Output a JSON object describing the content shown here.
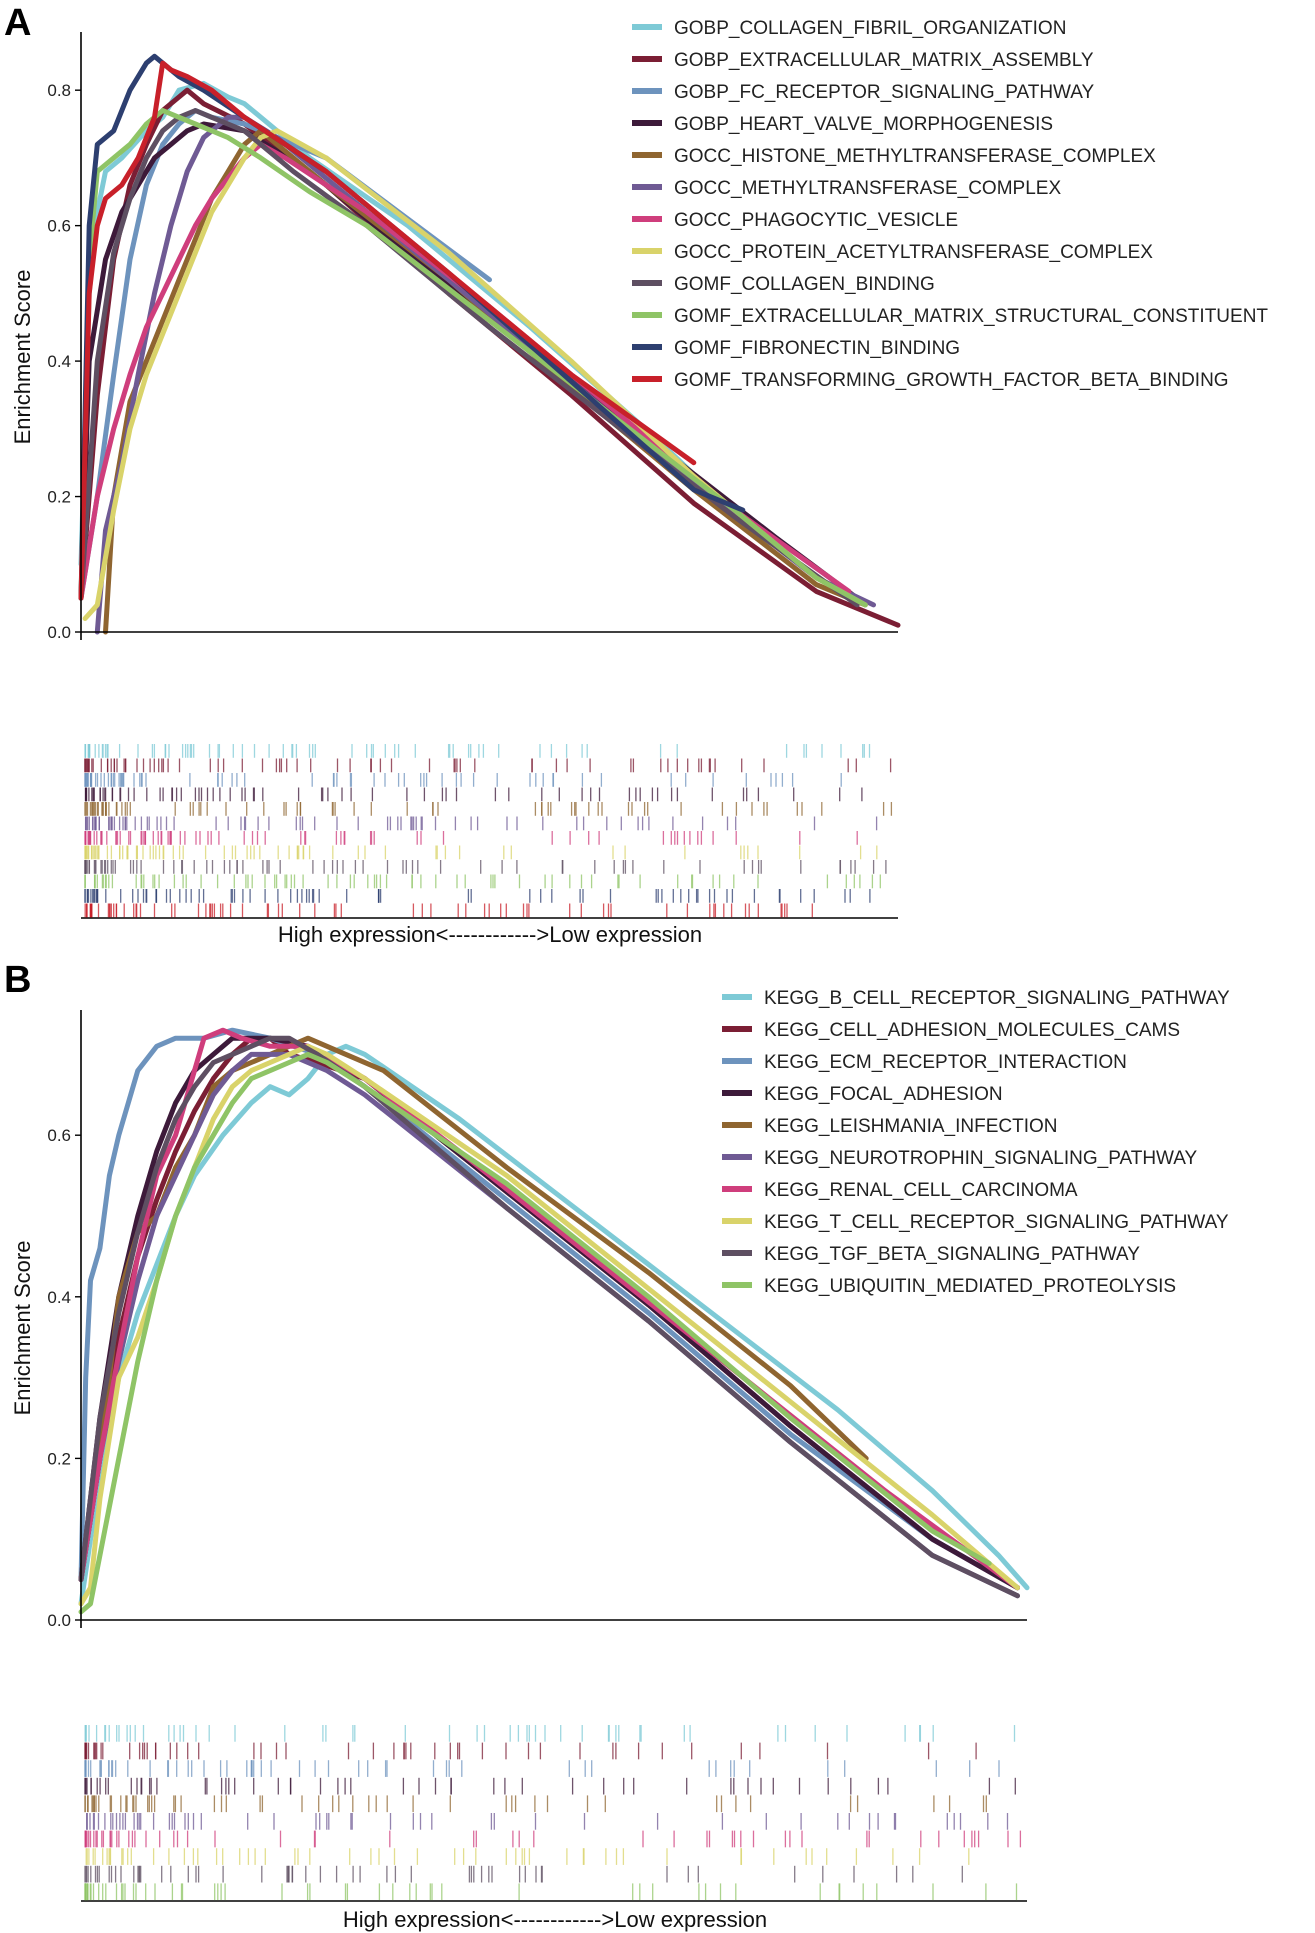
{
  "chart_data": [
    {
      "panel": "A",
      "type": "line",
      "title": "",
      "ylabel": "Enrichment Score",
      "xlabel": "High expression<------------>Low expression",
      "ylim": [
        0,
        0.88
      ],
      "yticks": [
        0.0,
        0.2,
        0.4,
        0.6,
        0.8
      ],
      "ytick_labels": [
        "0.0",
        "0.2",
        "0.4",
        "0.6",
        "0.8"
      ],
      "xlim": [
        0,
        1
      ],
      "grid": false,
      "legend_position": "top-right",
      "series": [
        {
          "name": "GOBP_COLLAGEN_FIBRIL_ORGANIZATION",
          "color": "#7ecad6",
          "x": [
            0,
            0.01,
            0.02,
            0.03,
            0.05,
            0.08,
            0.1,
            0.12,
            0.15,
            0.18,
            0.2,
            0.28,
            0.4,
            0.55,
            0.7,
            0.84
          ],
          "y": [
            0.1,
            0.5,
            0.62,
            0.68,
            0.7,
            0.74,
            0.76,
            0.8,
            0.81,
            0.79,
            0.78,
            0.7,
            0.6,
            0.45,
            0.29,
            0.13
          ]
        },
        {
          "name": "GOBP_EXTRACELLULAR_MATRIX_ASSEMBLY",
          "color": "#7b1e34",
          "x": [
            0,
            0.02,
            0.04,
            0.06,
            0.08,
            0.1,
            0.12,
            0.13,
            0.15,
            0.2,
            0.3,
            0.45,
            0.6,
            0.75,
            0.9,
            1.0
          ],
          "y": [
            0.05,
            0.35,
            0.55,
            0.66,
            0.72,
            0.77,
            0.79,
            0.8,
            0.78,
            0.75,
            0.66,
            0.5,
            0.35,
            0.19,
            0.06,
            0.01
          ]
        },
        {
          "name": "GOBP_FC_RECEPTOR_SIGNALING_PATHWAY",
          "color": "#6d93bd",
          "x": [
            0,
            0.02,
            0.04,
            0.06,
            0.08,
            0.1,
            0.12,
            0.14,
            0.16,
            0.2,
            0.3,
            0.4,
            0.5
          ],
          "y": [
            0.05,
            0.2,
            0.38,
            0.55,
            0.66,
            0.72,
            0.75,
            0.77,
            0.76,
            0.75,
            0.7,
            0.61,
            0.52
          ]
        },
        {
          "name": "GOBP_HEART_VALVE_MORPHOGENESIS",
          "color": "#3d1a3a",
          "x": [
            0,
            0.01,
            0.03,
            0.05,
            0.07,
            0.09,
            0.11,
            0.13,
            0.15,
            0.2,
            0.28,
            0.4,
            0.55,
            0.7,
            0.85,
            0.95
          ],
          "y": [
            0.05,
            0.4,
            0.55,
            0.62,
            0.66,
            0.7,
            0.72,
            0.74,
            0.75,
            0.74,
            0.68,
            0.56,
            0.42,
            0.28,
            0.14,
            0.05
          ]
        },
        {
          "name": "GOCC_HISTONE_METHYLTRANSFERASE_COMPLEX",
          "color": "#8f6530",
          "x": [
            0.03,
            0.04,
            0.06,
            0.08,
            0.1,
            0.12,
            0.14,
            0.16,
            0.18,
            0.2,
            0.22,
            0.24,
            0.3,
            0.45,
            0.6,
            0.75,
            0.9,
            0.96
          ],
          "y": [
            0.0,
            0.2,
            0.34,
            0.4,
            0.46,
            0.52,
            0.58,
            0.64,
            0.68,
            0.72,
            0.74,
            0.72,
            0.66,
            0.52,
            0.36,
            0.21,
            0.07,
            0.04
          ]
        },
        {
          "name": "GOCC_METHYLTRANSFERASE_COMPLEX",
          "color": "#6f5a94",
          "x": [
            0.02,
            0.03,
            0.05,
            0.07,
            0.09,
            0.11,
            0.13,
            0.15,
            0.18,
            0.2,
            0.24,
            0.3,
            0.45,
            0.6,
            0.75,
            0.9,
            0.97
          ],
          "y": [
            0.0,
            0.15,
            0.25,
            0.38,
            0.5,
            0.6,
            0.68,
            0.73,
            0.76,
            0.76,
            0.73,
            0.67,
            0.52,
            0.37,
            0.22,
            0.08,
            0.04
          ]
        },
        {
          "name": "GOCC_PHAGOCYTIC_VESICLE",
          "color": "#cf3e7c",
          "x": [
            0,
            0.02,
            0.04,
            0.06,
            0.08,
            0.1,
            0.12,
            0.14,
            0.16,
            0.18,
            0.2,
            0.22,
            0.25,
            0.35,
            0.5,
            0.65,
            0.8,
            0.94
          ],
          "y": [
            0.05,
            0.2,
            0.3,
            0.38,
            0.45,
            0.5,
            0.55,
            0.6,
            0.64,
            0.67,
            0.7,
            0.72,
            0.7,
            0.62,
            0.48,
            0.33,
            0.18,
            0.06
          ]
        },
        {
          "name": "GOCC_PROTEIN_ACETYLTRANSFERASE_COMPLEX",
          "color": "#d9d36a",
          "x": [
            0.005,
            0.02,
            0.04,
            0.06,
            0.08,
            0.1,
            0.12,
            0.14,
            0.16,
            0.18,
            0.2,
            0.22,
            0.24,
            0.3,
            0.45,
            0.6,
            0.75,
            0.9,
            0.96
          ],
          "y": [
            0.02,
            0.04,
            0.18,
            0.3,
            0.38,
            0.44,
            0.5,
            0.56,
            0.62,
            0.66,
            0.7,
            0.73,
            0.74,
            0.7,
            0.56,
            0.4,
            0.23,
            0.08,
            0.04
          ]
        },
        {
          "name": "GOMF_COLLAGEN_BINDING",
          "color": "#5e4f62",
          "x": [
            0,
            0.02,
            0.04,
            0.06,
            0.08,
            0.1,
            0.12,
            0.14,
            0.16,
            0.2,
            0.26,
            0.35,
            0.5,
            0.65,
            0.8,
            0.95
          ],
          "y": [
            0.05,
            0.4,
            0.56,
            0.64,
            0.7,
            0.74,
            0.76,
            0.77,
            0.76,
            0.74,
            0.68,
            0.6,
            0.45,
            0.31,
            0.17,
            0.04
          ]
        },
        {
          "name": "GOMF_EXTRACELLULAR_MATRIX_STRUCTURAL_CONSTITUENT",
          "color": "#8fc466",
          "x": [
            0,
            0.01,
            0.02,
            0.04,
            0.06,
            0.08,
            0.1,
            0.12,
            0.14,
            0.18,
            0.22,
            0.28,
            0.35,
            0.5,
            0.65,
            0.8,
            0.9,
            0.96
          ],
          "y": [
            0.05,
            0.55,
            0.68,
            0.7,
            0.72,
            0.75,
            0.77,
            0.76,
            0.75,
            0.73,
            0.7,
            0.65,
            0.6,
            0.46,
            0.32,
            0.18,
            0.08,
            0.04
          ]
        },
        {
          "name": "GOMF_FIBRONECTIN_BINDING",
          "color": "#2d3f70",
          "x": [
            0,
            0.01,
            0.02,
            0.04,
            0.06,
            0.08,
            0.09,
            0.1,
            0.12,
            0.15,
            0.2,
            0.3,
            0.45,
            0.6,
            0.75,
            0.81
          ],
          "y": [
            0.05,
            0.6,
            0.72,
            0.74,
            0.8,
            0.84,
            0.85,
            0.84,
            0.82,
            0.8,
            0.76,
            0.68,
            0.53,
            0.37,
            0.21,
            0.18
          ]
        },
        {
          "name": "GOMF_TRANSFORMING_GROWTH_FACTOR_BETA_BINDING",
          "color": "#c8202a",
          "x": [
            0,
            0.01,
            0.02,
            0.03,
            0.05,
            0.07,
            0.09,
            0.1,
            0.11,
            0.13,
            0.16,
            0.2,
            0.3,
            0.45,
            0.6,
            0.75
          ],
          "y": [
            0.05,
            0.5,
            0.6,
            0.64,
            0.66,
            0.7,
            0.76,
            0.84,
            0.83,
            0.82,
            0.8,
            0.76,
            0.68,
            0.53,
            0.38,
            0.25
          ]
        }
      ]
    },
    {
      "panel": "B",
      "type": "line",
      "title": "",
      "ylabel": "Enrichment Score",
      "xlabel": "High expression<------------>Low expression",
      "ylim": [
        0,
        0.75
      ],
      "yticks": [
        0.0,
        0.2,
        0.4,
        0.6
      ],
      "ytick_labels": [
        "0.0",
        "0.2",
        "0.4",
        "0.6"
      ],
      "xlim": [
        0,
        1
      ],
      "grid": false,
      "legend_position": "top-right",
      "series": [
        {
          "name": "KEGG_B_CELL_RECEPTOR_SIGNALING_PATHWAY",
          "color": "#7ecad6",
          "x": [
            0,
            0.01,
            0.02,
            0.04,
            0.06,
            0.08,
            0.1,
            0.12,
            0.15,
            0.18,
            0.2,
            0.22,
            0.24,
            0.26,
            0.28,
            0.3,
            0.4,
            0.5,
            0.6,
            0.7,
            0.8,
            0.9,
            0.97,
            1.0
          ],
          "y": [
            0.02,
            0.1,
            0.18,
            0.3,
            0.38,
            0.44,
            0.5,
            0.55,
            0.6,
            0.64,
            0.66,
            0.65,
            0.67,
            0.7,
            0.71,
            0.7,
            0.62,
            0.53,
            0.44,
            0.35,
            0.26,
            0.16,
            0.08,
            0.04
          ]
        },
        {
          "name": "KEGG_CELL_ADHESION_MOLECULES_CAMS",
          "color": "#7b1e34",
          "x": [
            0,
            0.02,
            0.04,
            0.06,
            0.08,
            0.1,
            0.12,
            0.14,
            0.16,
            0.18,
            0.2,
            0.22,
            0.25,
            0.3,
            0.45,
            0.6,
            0.75,
            0.9,
            0.99
          ],
          "y": [
            0.05,
            0.2,
            0.35,
            0.45,
            0.52,
            0.58,
            0.63,
            0.67,
            0.7,
            0.72,
            0.72,
            0.7,
            0.69,
            0.67,
            0.53,
            0.39,
            0.24,
            0.1,
            0.04
          ]
        },
        {
          "name": "KEGG_ECM_RECEPTOR_INTERACTION",
          "color": "#6d93bd",
          "x": [
            0,
            0.005,
            0.01,
            0.02,
            0.03,
            0.04,
            0.05,
            0.06,
            0.08,
            0.1,
            0.13,
            0.16,
            0.2,
            0.25,
            0.3,
            0.45,
            0.6,
            0.75,
            0.9,
            0.99
          ],
          "y": [
            0.05,
            0.3,
            0.42,
            0.46,
            0.55,
            0.6,
            0.64,
            0.68,
            0.71,
            0.72,
            0.72,
            0.73,
            0.72,
            0.7,
            0.66,
            0.52,
            0.38,
            0.23,
            0.1,
            0.04
          ]
        },
        {
          "name": "KEGG_FOCAL_ADHESION",
          "color": "#3d1a3a",
          "x": [
            0,
            0.02,
            0.04,
            0.06,
            0.08,
            0.1,
            0.12,
            0.14,
            0.16,
            0.18,
            0.2,
            0.24,
            0.3,
            0.45,
            0.6,
            0.75,
            0.9,
            0.99
          ],
          "y": [
            0.05,
            0.25,
            0.4,
            0.5,
            0.58,
            0.64,
            0.68,
            0.7,
            0.72,
            0.72,
            0.72,
            0.71,
            0.67,
            0.53,
            0.39,
            0.24,
            0.1,
            0.04
          ]
        },
        {
          "name": "KEGG_LEISHMANIA_INFECTION",
          "color": "#8f6530",
          "x": [
            0,
            0.02,
            0.04,
            0.06,
            0.08,
            0.1,
            0.12,
            0.14,
            0.16,
            0.18,
            0.2,
            0.22,
            0.24,
            0.28,
            0.32,
            0.45,
            0.6,
            0.75,
            0.83
          ],
          "y": [
            0.05,
            0.2,
            0.4,
            0.48,
            0.5,
            0.56,
            0.6,
            0.66,
            0.68,
            0.69,
            0.7,
            0.71,
            0.72,
            0.7,
            0.68,
            0.56,
            0.43,
            0.29,
            0.2
          ]
        },
        {
          "name": "KEGG_NEUROTROPHIN_SIGNALING_PATHWAY",
          "color": "#6f5a94",
          "x": [
            0,
            0.02,
            0.04,
            0.06,
            0.08,
            0.1,
            0.12,
            0.14,
            0.16,
            0.18,
            0.2,
            0.22,
            0.26,
            0.3,
            0.45,
            0.6,
            0.75,
            0.9,
            0.99
          ],
          "y": [
            0.05,
            0.2,
            0.32,
            0.42,
            0.5,
            0.55,
            0.6,
            0.65,
            0.68,
            0.7,
            0.7,
            0.7,
            0.68,
            0.65,
            0.51,
            0.37,
            0.22,
            0.08,
            0.03
          ]
        },
        {
          "name": "KEGG_RENAL_CELL_CARCINOMA",
          "color": "#cf3e7c",
          "x": [
            0,
            0.02,
            0.04,
            0.06,
            0.08,
            0.1,
            0.12,
            0.13,
            0.15,
            0.17,
            0.2,
            0.24,
            0.3,
            0.4,
            0.55,
            0.7,
            0.85,
            0.99
          ],
          "y": [
            0.05,
            0.2,
            0.33,
            0.45,
            0.55,
            0.6,
            0.68,
            0.72,
            0.73,
            0.72,
            0.71,
            0.71,
            0.67,
            0.58,
            0.44,
            0.3,
            0.16,
            0.04
          ]
        },
        {
          "name": "KEGG_T_CELL_RECEPTOR_SIGNALING_PATHWAY",
          "color": "#d9d36a",
          "x": [
            0,
            0.01,
            0.02,
            0.04,
            0.06,
            0.08,
            0.1,
            0.12,
            0.14,
            0.16,
            0.18,
            0.2,
            0.22,
            0.24,
            0.26,
            0.3,
            0.45,
            0.6,
            0.75,
            0.9,
            0.99
          ],
          "y": [
            0.02,
            0.04,
            0.15,
            0.3,
            0.35,
            0.42,
            0.5,
            0.56,
            0.62,
            0.66,
            0.68,
            0.69,
            0.7,
            0.71,
            0.7,
            0.67,
            0.55,
            0.41,
            0.27,
            0.13,
            0.04
          ]
        },
        {
          "name": "KEGG_TGF_BETA_SIGNALING_PATHWAY",
          "color": "#5e4f62",
          "x": [
            0,
            0.02,
            0.04,
            0.06,
            0.08,
            0.1,
            0.12,
            0.14,
            0.16,
            0.18,
            0.2,
            0.22,
            0.25,
            0.3,
            0.45,
            0.6,
            0.75,
            0.9,
            0.99
          ],
          "y": [
            0.05,
            0.25,
            0.38,
            0.48,
            0.56,
            0.62,
            0.66,
            0.69,
            0.7,
            0.71,
            0.72,
            0.72,
            0.7,
            0.66,
            0.51,
            0.37,
            0.22,
            0.08,
            0.03
          ]
        },
        {
          "name": "KEGG_UBIQUITIN_MEDIATED_PROTEOLYSIS",
          "color": "#8fc466",
          "x": [
            0,
            0.01,
            0.02,
            0.04,
            0.06,
            0.08,
            0.1,
            0.12,
            0.14,
            0.16,
            0.18,
            0.2,
            0.22,
            0.24,
            0.26,
            0.3,
            0.45,
            0.6,
            0.75,
            0.9,
            0.96
          ],
          "y": [
            0.01,
            0.02,
            0.08,
            0.2,
            0.32,
            0.42,
            0.5,
            0.56,
            0.6,
            0.64,
            0.67,
            0.68,
            0.69,
            0.7,
            0.69,
            0.66,
            0.54,
            0.4,
            0.25,
            0.11,
            0.07
          ]
        }
      ]
    }
  ]
}
